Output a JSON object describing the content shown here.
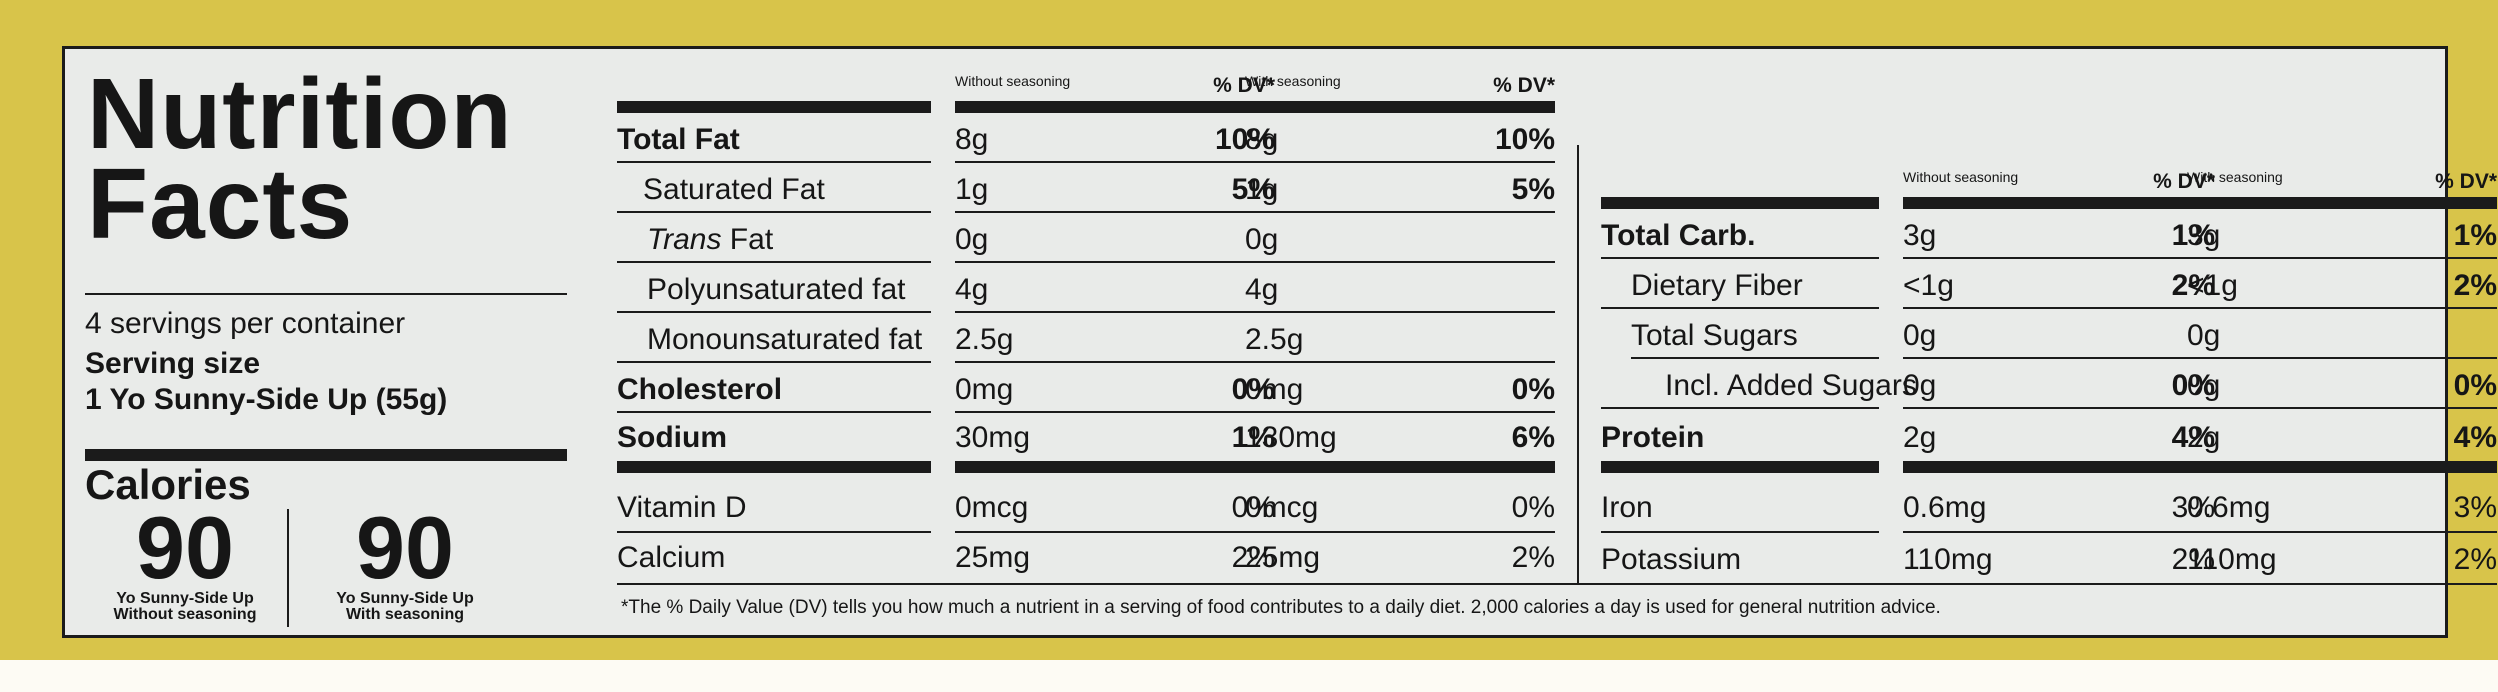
{
  "label": {
    "title_line1": "Nutrition",
    "title_line2": "Facts",
    "servings": "4 servings per container",
    "serving_size_label": "Serving size",
    "serving_size_value": "1 Yo Sunny-Side Up (55g)",
    "calories_label": "Calories",
    "calories": [
      {
        "value": "90",
        "caption1": "Yo Sunny-Side Up",
        "caption2": "Without seasoning"
      },
      {
        "value": "90",
        "caption1": "Yo Sunny-Side Up",
        "caption2": "With seasoning"
      }
    ],
    "col_headers": {
      "without": "Without seasoning",
      "with": "With seasoning",
      "dv": "% DV*"
    },
    "left_rows": [
      {
        "name": "Total Fat",
        "a": "8g",
        "adv": "10%",
        "b": "8g",
        "bdv": "10%"
      },
      {
        "name": "Saturated Fat",
        "a": "1g",
        "adv": "5%",
        "b": "1g",
        "bdv": "5%"
      },
      {
        "name_italic": "Trans",
        "name_rest": " Fat",
        "a": "0g",
        "adv": "",
        "b": "0g",
        "bdv": ""
      },
      {
        "name": "Polyunsaturated fat",
        "a": "4g",
        "adv": "",
        "b": "4g",
        "bdv": ""
      },
      {
        "name": "Monounsaturated fat",
        "a": "2.5g",
        "adv": "",
        "b": "2.5g",
        "bdv": ""
      },
      {
        "name": "Cholesterol",
        "a": "0mg",
        "adv": "0%",
        "b": "0mg",
        "bdv": "0%"
      },
      {
        "name": "Sodium",
        "a": "30mg",
        "adv": "1%",
        "b": "130mg",
        "bdv": "6%"
      },
      {
        "name": "Vitamin D",
        "a": "0mcg",
        "adv": "0%",
        "b": "0mcg",
        "bdv": "0%"
      },
      {
        "name": "Calcium",
        "a": "25mg",
        "adv": "2%",
        "b": "25mg",
        "bdv": "2%"
      }
    ],
    "right_rows": [
      {
        "name": "Total Carb.",
        "a": "3g",
        "adv": "1%",
        "b": "3g",
        "bdv": "1%"
      },
      {
        "name": "Dietary Fiber",
        "a": "<1g",
        "adv": "2%",
        "b": "<1g",
        "bdv": "2%"
      },
      {
        "name": "Total Sugars",
        "a": "0g",
        "adv": "",
        "b": "0g",
        "bdv": ""
      },
      {
        "name": "Incl. Added Sugars",
        "a": "0g",
        "adv": "0%",
        "b": "0g",
        "bdv": "0%"
      },
      {
        "name": "Protein",
        "a": "2g",
        "adv": "4%",
        "b": "2g",
        "bdv": "4%"
      },
      {
        "name": "Iron",
        "a": "0.6mg",
        "adv": "3%",
        "b": "0.6mg",
        "bdv": "3%"
      },
      {
        "name": "Potassium",
        "a": "110mg",
        "adv": "2%",
        "b": "110mg",
        "bdv": "2%"
      }
    ],
    "footnote": "*The % Daily Value (DV) tells you how much a nutrient in a serving of food contributes to a daily diet. 2,000 calories a day is used for general nutrition advice."
  }
}
